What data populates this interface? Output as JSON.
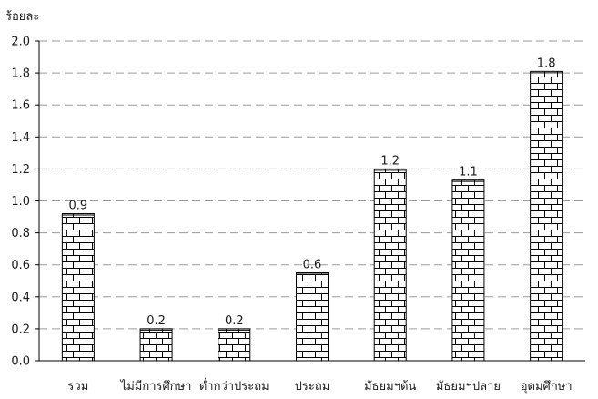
{
  "chart_data": {
    "type": "bar",
    "ylabel": "ร้อยละ",
    "categories": [
      "รวม",
      "ไม่มีการศึกษา",
      "ต่ำกว่าประถม",
      "ประถม",
      "มัธยมฯต้น",
      "มัธยมฯปลาย",
      "อุดมศึกษา"
    ],
    "values": [
      0.92,
      0.2,
      0.2,
      0.55,
      1.2,
      1.13,
      1.81
    ],
    "data_labels": [
      "0.9",
      "0.2",
      "0.2",
      "0.6",
      "1.2",
      "1.1",
      "1.8"
    ],
    "ylim": [
      0,
      2.0
    ],
    "yticks": [
      "0.0",
      "0.2",
      "0.4",
      "0.6",
      "0.8",
      "1.0",
      "1.2",
      "1.4",
      "1.6",
      "1.8",
      "2.0"
    ],
    "grid": true,
    "legend": "none",
    "bar_pattern": "brick",
    "colors": {
      "bar_fill": "#ffffff",
      "bar_stroke": "#000000",
      "grid": "#9a9a9a",
      "axis": "#000000"
    }
  }
}
